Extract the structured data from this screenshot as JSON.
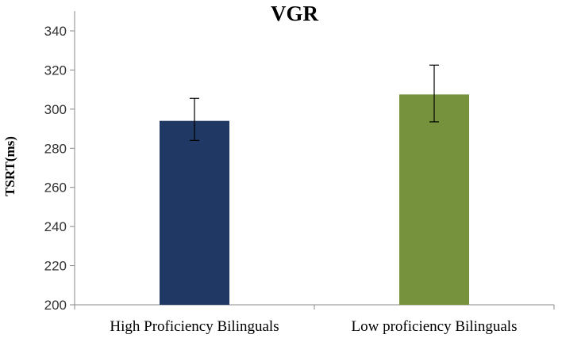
{
  "chart_data": {
    "type": "bar",
    "title": "VGR",
    "xlabel": "",
    "ylabel": "TSRT(ms)",
    "ylim": [
      200,
      340
    ],
    "yticks": [
      200,
      220,
      240,
      260,
      280,
      300,
      320,
      340
    ],
    "ytick_labels": [
      "200",
      "220",
      "240",
      "260",
      "280",
      "300",
      "320",
      "340"
    ],
    "categories": [
      "High Proficiency Bilinguals",
      "Low proficiency Bilinguals"
    ],
    "values": [
      294,
      307.5
    ],
    "error_bars": [
      {
        "low": 284,
        "high": 305.5
      },
      {
        "low": 293.5,
        "high": 322.5
      }
    ],
    "colors": [
      "#1f3864",
      "#76923c"
    ],
    "grid": false,
    "legend": "none"
  }
}
